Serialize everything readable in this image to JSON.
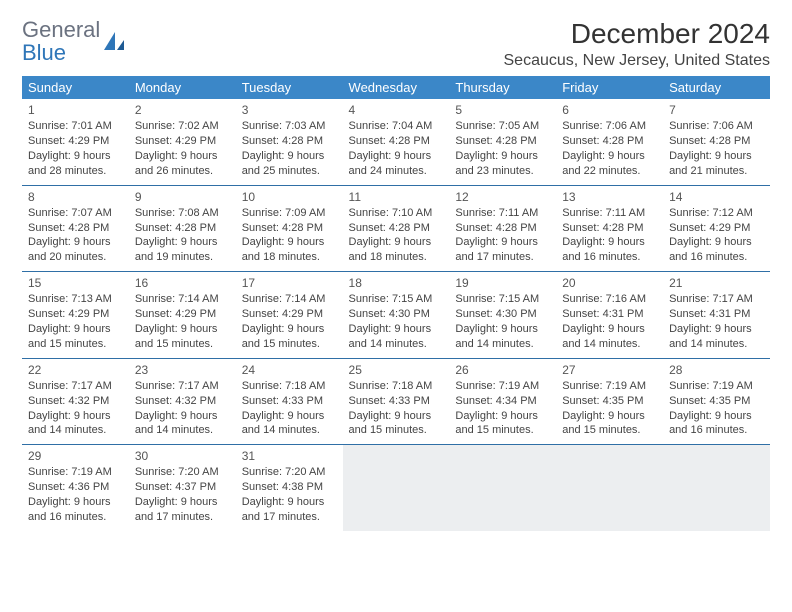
{
  "logo": {
    "line1": "General",
    "line2": "Blue"
  },
  "title": "December 2024",
  "location": "Secaucus, New Jersey, United States",
  "colors": {
    "header_bg": "#3b87c8",
    "header_fg": "#ffffff",
    "rule": "#2f6fa6",
    "empty_bg": "#eceef0",
    "logo_gray": "#6b7280",
    "logo_blue": "#2f76b8"
  },
  "weekdays": [
    "Sunday",
    "Monday",
    "Tuesday",
    "Wednesday",
    "Thursday",
    "Friday",
    "Saturday"
  ],
  "weeks": [
    [
      {
        "d": "1",
        "sr": "7:01 AM",
        "ss": "4:29 PM",
        "dl": "9 hours and 28 minutes."
      },
      {
        "d": "2",
        "sr": "7:02 AM",
        "ss": "4:29 PM",
        "dl": "9 hours and 26 minutes."
      },
      {
        "d": "3",
        "sr": "7:03 AM",
        "ss": "4:28 PM",
        "dl": "9 hours and 25 minutes."
      },
      {
        "d": "4",
        "sr": "7:04 AM",
        "ss": "4:28 PM",
        "dl": "9 hours and 24 minutes."
      },
      {
        "d": "5",
        "sr": "7:05 AM",
        "ss": "4:28 PM",
        "dl": "9 hours and 23 minutes."
      },
      {
        "d": "6",
        "sr": "7:06 AM",
        "ss": "4:28 PM",
        "dl": "9 hours and 22 minutes."
      },
      {
        "d": "7",
        "sr": "7:06 AM",
        "ss": "4:28 PM",
        "dl": "9 hours and 21 minutes."
      }
    ],
    [
      {
        "d": "8",
        "sr": "7:07 AM",
        "ss": "4:28 PM",
        "dl": "9 hours and 20 minutes."
      },
      {
        "d": "9",
        "sr": "7:08 AM",
        "ss": "4:28 PM",
        "dl": "9 hours and 19 minutes."
      },
      {
        "d": "10",
        "sr": "7:09 AM",
        "ss": "4:28 PM",
        "dl": "9 hours and 18 minutes."
      },
      {
        "d": "11",
        "sr": "7:10 AM",
        "ss": "4:28 PM",
        "dl": "9 hours and 18 minutes."
      },
      {
        "d": "12",
        "sr": "7:11 AM",
        "ss": "4:28 PM",
        "dl": "9 hours and 17 minutes."
      },
      {
        "d": "13",
        "sr": "7:11 AM",
        "ss": "4:28 PM",
        "dl": "9 hours and 16 minutes."
      },
      {
        "d": "14",
        "sr": "7:12 AM",
        "ss": "4:29 PM",
        "dl": "9 hours and 16 minutes."
      }
    ],
    [
      {
        "d": "15",
        "sr": "7:13 AM",
        "ss": "4:29 PM",
        "dl": "9 hours and 15 minutes."
      },
      {
        "d": "16",
        "sr": "7:14 AM",
        "ss": "4:29 PM",
        "dl": "9 hours and 15 minutes."
      },
      {
        "d": "17",
        "sr": "7:14 AM",
        "ss": "4:29 PM",
        "dl": "9 hours and 15 minutes."
      },
      {
        "d": "18",
        "sr": "7:15 AM",
        "ss": "4:30 PM",
        "dl": "9 hours and 14 minutes."
      },
      {
        "d": "19",
        "sr": "7:15 AM",
        "ss": "4:30 PM",
        "dl": "9 hours and 14 minutes."
      },
      {
        "d": "20",
        "sr": "7:16 AM",
        "ss": "4:31 PM",
        "dl": "9 hours and 14 minutes."
      },
      {
        "d": "21",
        "sr": "7:17 AM",
        "ss": "4:31 PM",
        "dl": "9 hours and 14 minutes."
      }
    ],
    [
      {
        "d": "22",
        "sr": "7:17 AM",
        "ss": "4:32 PM",
        "dl": "9 hours and 14 minutes."
      },
      {
        "d": "23",
        "sr": "7:17 AM",
        "ss": "4:32 PM",
        "dl": "9 hours and 14 minutes."
      },
      {
        "d": "24",
        "sr": "7:18 AM",
        "ss": "4:33 PM",
        "dl": "9 hours and 14 minutes."
      },
      {
        "d": "25",
        "sr": "7:18 AM",
        "ss": "4:33 PM",
        "dl": "9 hours and 15 minutes."
      },
      {
        "d": "26",
        "sr": "7:19 AM",
        "ss": "4:34 PM",
        "dl": "9 hours and 15 minutes."
      },
      {
        "d": "27",
        "sr": "7:19 AM",
        "ss": "4:35 PM",
        "dl": "9 hours and 15 minutes."
      },
      {
        "d": "28",
        "sr": "7:19 AM",
        "ss": "4:35 PM",
        "dl": "9 hours and 16 minutes."
      }
    ],
    [
      {
        "d": "29",
        "sr": "7:19 AM",
        "ss": "4:36 PM",
        "dl": "9 hours and 16 minutes."
      },
      {
        "d": "30",
        "sr": "7:20 AM",
        "ss": "4:37 PM",
        "dl": "9 hours and 17 minutes."
      },
      {
        "d": "31",
        "sr": "7:20 AM",
        "ss": "4:38 PM",
        "dl": "9 hours and 17 minutes."
      },
      null,
      null,
      null,
      null
    ]
  ],
  "labels": {
    "sunrise": "Sunrise: ",
    "sunset": "Sunset: ",
    "daylight": "Daylight: "
  }
}
